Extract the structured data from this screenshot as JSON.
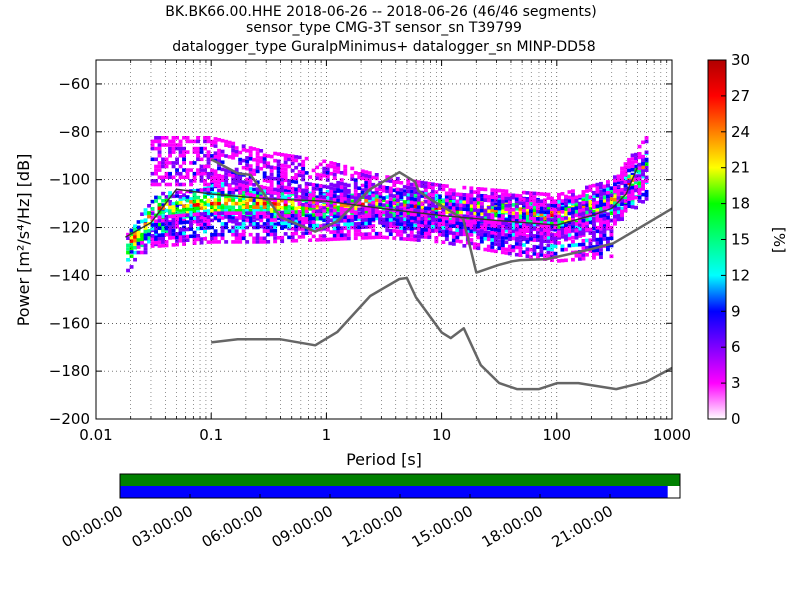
{
  "title": {
    "line1": "BK.BK66.00.HHE   2018-06-26 -- 2018-06-26  (46/46 segments)",
    "line2": "sensor_type CMG-3T sensor_sn T39799",
    "line3": "datalogger_type GuralpMinimus+ datalogger_sn MINP-DD58"
  },
  "chart_data": [
    {
      "type": "heatmap",
      "subtype": "probabilistic power spectral density",
      "xlabel": "Period [s]",
      "ylabel": "Power [m²/s⁴/Hz] [dB]",
      "xscale": "log",
      "xlim": [
        0.01,
        1000
      ],
      "ylim": [
        -200,
        -50
      ],
      "xticks": [
        0.01,
        0.1,
        1,
        10,
        100,
        1000
      ],
      "xtick_labels": [
        "0.01",
        "0.1",
        "1",
        "10",
        "100",
        "1000"
      ],
      "yticks": [
        -200,
        -180,
        -160,
        -140,
        -120,
        -100,
        -80,
        -60
      ],
      "ytick_labels": [
        "−200",
        "−180",
        "−160",
        "−140",
        "−120",
        "−100",
        "−80",
        "−60"
      ],
      "grid": "dotted",
      "colorbar": {
        "label": "[%]",
        "range": [
          0,
          30
        ],
        "ticks": [
          0,
          3,
          6,
          9,
          12,
          15,
          18,
          21,
          24,
          27,
          30
        ],
        "colormap": [
          "#ffffff",
          "#ff00ff",
          "#7f00ff",
          "#0000ff",
          "#00ffff",
          "#00ff7f",
          "#00ff00",
          "#ffff00",
          "#ff7f00",
          "#ff0000",
          "#b00000"
        ]
      },
      "density_bands": [
        {
          "x": [
            0.018,
            0.03,
            0.1,
            0.3,
            1,
            3,
            10,
            30,
            100,
            300,
            600
          ],
          "y": [
            -131,
            -120,
            -108,
            -112,
            -113,
            -111,
            -114,
            -116,
            -118,
            -112,
            -100
          ],
          "spread": 8,
          "level": 6
        },
        {
          "x": [
            0.02,
            0.035,
            0.1,
            0.3,
            1,
            3,
            10,
            30,
            100,
            300,
            600
          ],
          "y": [
            -126,
            -112,
            -110,
            -110,
            -111,
            -110,
            -112,
            -113,
            -115,
            -108,
            -95
          ],
          "spread": 6,
          "level": 8
        },
        {
          "x": [
            0.03,
            0.1,
            0.3,
            1,
            3,
            10,
            30,
            100,
            300,
            600
          ],
          "y": [
            -92,
            -92,
            -98,
            -102,
            -108,
            -112,
            -114,
            -116,
            -110,
            -92
          ],
          "spread": 10,
          "level": 2
        },
        {
          "x": [
            0.03,
            0.1,
            0.3,
            1,
            3,
            10,
            30,
            100,
            300
          ],
          "y": [
            -122,
            -120,
            -120,
            -119,
            -118,
            -120,
            -124,
            -128,
            -126
          ],
          "spread": 6,
          "level": 3
        }
      ],
      "series": [
        {
          "name": "",
          "x": [
            0.1,
            0.17,
            0.4,
            0.8,
            1.24,
            2.4,
            4.3,
            5,
            6,
            10,
            12,
            15.6,
            21.9,
            31.6,
            45,
            70,
            101,
            154,
            328,
            600,
            1000
          ],
          "y": [
            -168,
            -166.7,
            -166.7,
            -169.2,
            -163.7,
            -148.6,
            -141.5,
            -141.1,
            -149.2,
            -163.8,
            -166.2,
            -162.1,
            -177.5,
            -185,
            -187.5,
            -187.5,
            -185,
            -185,
            -187.5,
            -184.4,
            -178.7
          ],
          "color": "#666666"
        },
        {
          "name": "",
          "x": [
            0.1,
            0.17,
            0.22,
            0.4,
            0.8,
            1.24,
            2.4,
            4.3,
            5.9,
            6.3,
            7.9,
            15.4,
            20,
            21,
            31,
            41,
            48,
            82,
            200,
            309,
            350,
            1000
          ],
          "y": [
            -91.5,
            -97.4,
            -98,
            -115.7,
            -121.7,
            -117.4,
            -104,
            -96.9,
            -100.9,
            -104.7,
            -108,
            -116.4,
            -138.8,
            -138.5,
            -135.7,
            -134.1,
            -133.6,
            -133.2,
            -129,
            -126.6,
            -125.1,
            -112.1
          ],
          "color": "#666666"
        },
        {
          "name": "",
          "x": [
            0.018,
            0.03,
            0.05,
            0.1,
            0.3,
            1,
            3,
            10,
            30,
            100,
            200,
            300,
            400,
            500
          ],
          "y": [
            -124,
            -118,
            -104,
            -106,
            -108,
            -109,
            -112,
            -115,
            -117,
            -119,
            -115,
            -112,
            -106,
            -95
          ],
          "color": "#333333"
        }
      ]
    },
    {
      "type": "timeline",
      "tick_labels": [
        "00:00:00",
        "03:00:00",
        "06:00:00",
        "09:00:00",
        "12:00:00",
        "15:00:00",
        "18:00:00",
        "21:00:00"
      ],
      "rows": [
        {
          "color": "#008000",
          "covered_fraction": 1.0
        },
        {
          "color": "#0000ff",
          "covered_fraction": 0.978
        }
      ]
    }
  ]
}
